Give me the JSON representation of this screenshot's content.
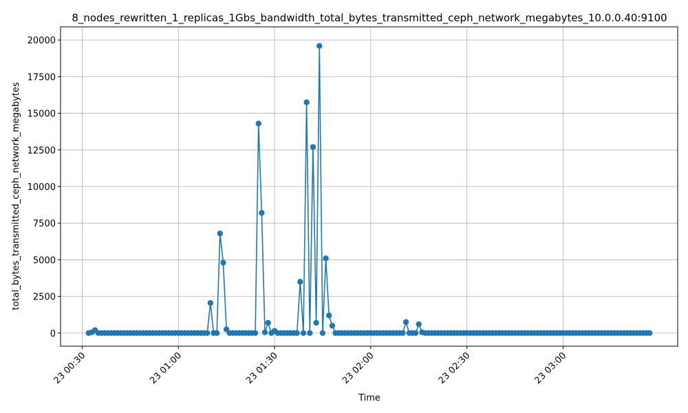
{
  "chart_data": {
    "type": "line",
    "title": "8_nodes_rewritten_1_replicas_1Gbs_bandwidth_total_bytes_transmitted_ceph_network_megabytes_10.0.0.40:9100",
    "xlabel": "Time",
    "ylabel": "total_bytes_transmitted_ceph_network_megabytes",
    "ylim": [
      -900,
      20900
    ],
    "y_ticks": [
      "0",
      "2500",
      "5000",
      "7500",
      "10000",
      "12500",
      "15000",
      "17500",
      "20000"
    ],
    "x_tick_labels": [
      "23 00:30",
      "23 01:00",
      "23 01:30",
      "23 02:00",
      "23 02:30",
      "23 03:00"
    ],
    "grid": true,
    "marker": "circle",
    "color": "#1f77b4",
    "x_start": "23 00:32",
    "x_step_minutes": 1,
    "series": [
      {
        "values": [
          0,
          50,
          200,
          0,
          0,
          0,
          0,
          0,
          0,
          0,
          0,
          0,
          0,
          0,
          0,
          0,
          0,
          0,
          0,
          0,
          0,
          0,
          0,
          0,
          0,
          0,
          0,
          0,
          0,
          0,
          0,
          0,
          0,
          0,
          0,
          0,
          0,
          0,
          2050,
          0,
          0,
          6800,
          4800,
          250,
          0,
          0,
          0,
          0,
          0,
          0,
          0,
          0,
          0,
          14300,
          8200,
          50,
          700,
          0,
          150,
          0,
          0,
          0,
          0,
          0,
          0,
          0,
          3500,
          0,
          15750,
          0,
          12700,
          700,
          19600,
          0,
          5100,
          1200,
          500,
          0,
          0,
          0,
          0,
          0,
          0,
          0,
          0,
          0,
          0,
          0,
          0,
          0,
          0,
          0,
          0,
          0,
          0,
          0,
          0,
          0,
          0,
          750,
          0,
          0,
          0,
          600,
          50,
          0,
          0,
          0,
          0,
          0,
          0,
          0,
          0,
          0,
          0,
          0,
          0,
          0,
          0,
          0,
          0,
          0,
          0,
          0,
          0,
          0,
          0,
          0,
          0,
          0,
          0,
          0,
          0,
          0,
          0,
          0,
          0,
          0,
          0,
          0,
          0,
          0,
          0,
          0,
          0,
          0,
          0,
          0,
          0,
          0,
          0,
          0,
          0,
          0,
          0,
          0,
          0,
          0,
          0,
          0,
          0,
          0,
          0,
          0,
          0,
          0,
          0,
          0,
          0,
          0,
          0,
          0,
          0,
          0,
          0,
          0
        ]
      }
    ]
  }
}
